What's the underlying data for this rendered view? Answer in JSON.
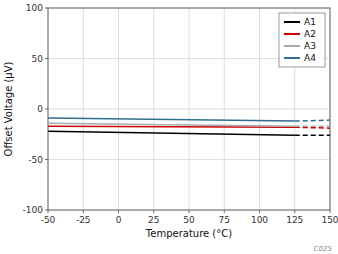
{
  "chart_data": {
    "type": "line",
    "xlabel": "Temperature (°C)",
    "ylabel": "Offset Voltage (µV)",
    "xlim": [
      -50,
      150
    ],
    "ylim": [
      -100,
      100
    ],
    "xticks": [
      -50,
      -25,
      0,
      25,
      50,
      75,
      100,
      125,
      150
    ],
    "yticks": [
      -100,
      -50,
      0,
      50,
      100
    ],
    "grid": true,
    "legend": "upper right",
    "annotations": [
      "C025"
    ],
    "series": [
      {
        "name": "A1",
        "color": "#000000",
        "x": [
          -50,
          125
        ],
        "values": [
          -22,
          -26
        ],
        "dash_x": [
          125,
          150
        ],
        "dash_values": [
          -26,
          -26
        ]
      },
      {
        "name": "A2",
        "color": "#cc0000",
        "x": [
          -50,
          125
        ],
        "values": [
          -17,
          -18
        ],
        "dash_x": [
          125,
          150
        ],
        "dash_values": [
          -18,
          -19
        ]
      },
      {
        "name": "A3",
        "color": "#aaaaaa",
        "x": [
          -50,
          125
        ],
        "values": [
          -14,
          -17
        ],
        "dash_x": [
          125,
          150
        ],
        "dash_values": [
          -17,
          -17
        ]
      },
      {
        "name": "A4",
        "color": "#2e6e8e",
        "x": [
          -50,
          125
        ],
        "values": [
          -9,
          -12
        ],
        "dash_x": [
          125,
          150
        ],
        "dash_values": [
          -12,
          -11
        ]
      }
    ]
  }
}
